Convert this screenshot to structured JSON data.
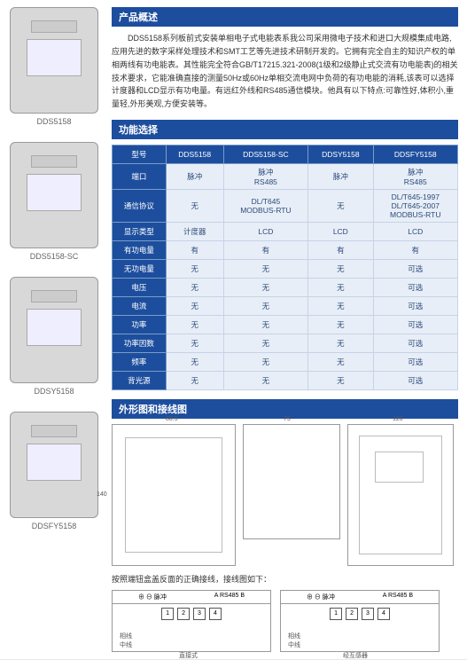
{
  "products": [
    {
      "label": "DDS5158"
    },
    {
      "label": "DDS5158-SC"
    },
    {
      "label": "DDSY5158"
    },
    {
      "label": "DDSFY5158"
    }
  ],
  "sections": {
    "overview": "产品概述",
    "function": "功能选择",
    "outline": "外形图和接线图"
  },
  "overview_text": "DDS5158系列板前式安装单相电子式电能表系我公司采用微电子技术和进口大规模集成电路,应用先进的数字采样处理技术和SMT工艺等先进技术研制开发的。它拥有完全自主的知识产权的单相两线有功电能表。其性能完全符合GB/T17215.321-2008(1级和2级静止式交流有功电能表)的相关技术要求，它能准确直接的测量50Hz或60Hz单相交流电网中负荷的有功电能的消耗,该表可以选择计度器和LCD显示有功电量。有远红外线和RS485通信模块。他具有以下特点:可靠性好,体积小,重量轻,外形美观,方便安装等。",
  "spec_table": {
    "headers": [
      "型号",
      "DDS5158",
      "DDS5158-SC",
      "DDSY5158",
      "DDSFY5158"
    ],
    "rows": [
      [
        "端口",
        "脉冲",
        "脉冲\nRS485",
        "脉冲",
        "脉冲\nRS485"
      ],
      [
        "通信协议",
        "无",
        "DL/T645\nMODBUS-RTU",
        "无",
        "DL/T645-1997\nDL/T645-2007\nMODBUS-RTU"
      ],
      [
        "显示类型",
        "计度器",
        "LCD",
        "LCD",
        "LCD"
      ],
      [
        "有功电量",
        "有",
        "有",
        "有",
        "有"
      ],
      [
        "无功电量",
        "无",
        "无",
        "无",
        "可选"
      ],
      [
        "电压",
        "无",
        "无",
        "无",
        "可选"
      ],
      [
        "电流",
        "无",
        "无",
        "无",
        "可选"
      ],
      [
        "功率",
        "无",
        "无",
        "无",
        "可选"
      ],
      [
        "功率因数",
        "无",
        "无",
        "无",
        "可选"
      ],
      [
        "频率",
        "无",
        "无",
        "无",
        "可选"
      ],
      [
        "背光源",
        "无",
        "无",
        "无",
        "可选"
      ]
    ]
  },
  "dimensions": {
    "front_w": "80.5",
    "front_h": "140",
    "inner_w": "75",
    "depth": "120"
  },
  "wiring": {
    "note": "按照端钮盒盖反面的正确接线，接线图如下：",
    "pulse": "脉冲",
    "rs485a": "RS485",
    "a": "A",
    "b": "B",
    "t1": "1",
    "t2": "2",
    "t3": "3",
    "t4": "4",
    "phase": "相线",
    "neutral": "中线",
    "direct": "直接式",
    "ct": "经互感器"
  }
}
